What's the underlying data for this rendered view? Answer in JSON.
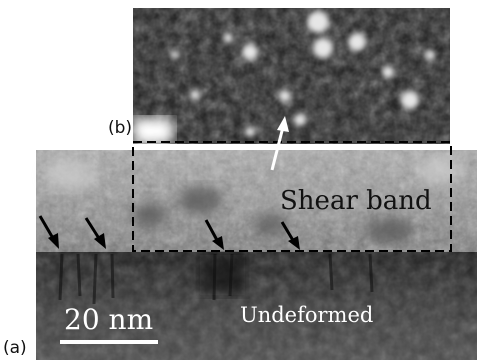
{
  "panels": {
    "a_label": "(a)",
    "b_label": "(b)"
  },
  "annotations": {
    "shear_band": "Shear band",
    "undeformed": "Undeformed",
    "scale_bar": "20 nm"
  },
  "colors": {
    "shear_band_region": "#8c8c8c",
    "undeformed_region": "#2a2a2a",
    "inset_background": "#1c1c1c",
    "dashed_box": "#000000",
    "arrow_black": "#000000",
    "arrow_white": "#ffffff"
  },
  "icons": {
    "marker_arrows": "arrow-down-right-icon",
    "inset_pointer": "arrow-up-icon"
  }
}
